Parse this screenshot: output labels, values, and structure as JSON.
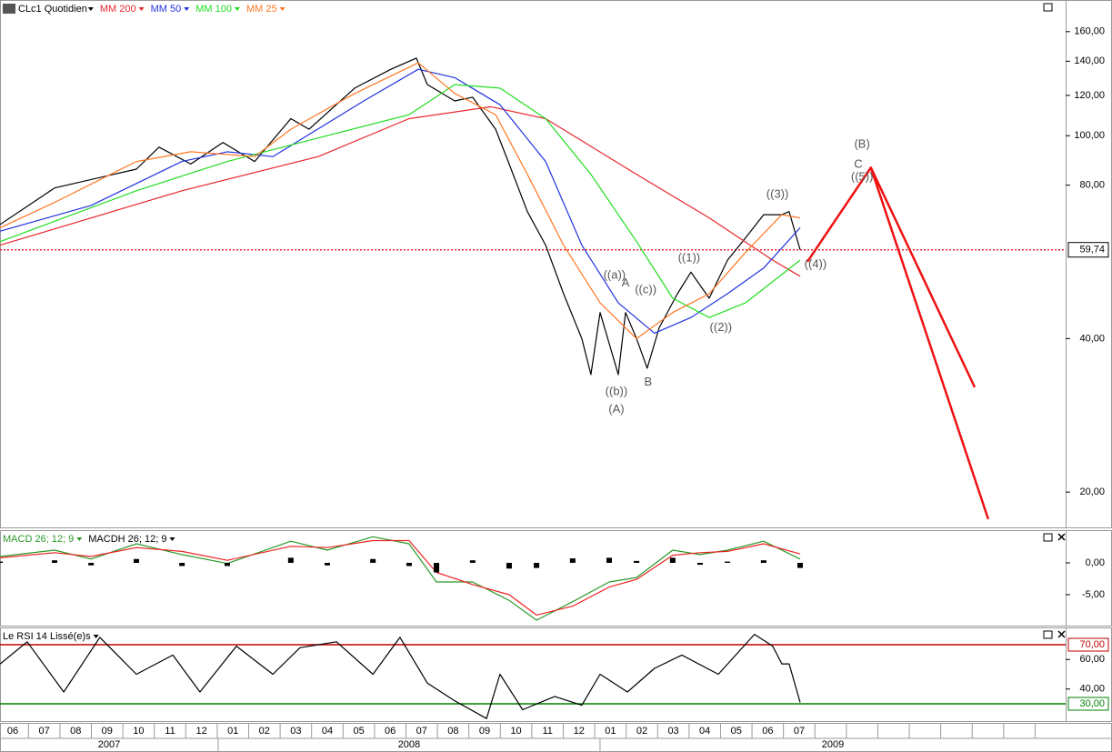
{
  "chart_data": [
    {
      "type": "line",
      "title": "CLc1 Quotidien",
      "log_scale": true,
      "xlim": [
        -0.405,
        33.47
      ],
      "ylim": [
        17.05,
        184.6
      ],
      "yticks": [
        {
          "value": 20,
          "label": "20,00"
        },
        {
          "value": 40,
          "label": "40,00"
        },
        {
          "value": 80,
          "label": "80,00"
        },
        {
          "value": 100,
          "label": "100,00"
        },
        {
          "value": 120,
          "label": "120,00"
        },
        {
          "value": 140,
          "label": "140,00"
        },
        {
          "value": 160,
          "label": "160,00"
        }
      ],
      "xticks": [
        "06",
        "07",
        "08",
        "09",
        "10",
        "11",
        "12",
        "01",
        "02",
        "03",
        "04",
        "05",
        "06",
        "07",
        "08",
        "09",
        "10",
        "11",
        "12",
        "01",
        "02",
        "03",
        "04",
        "05",
        "06",
        "07"
      ],
      "year_ticks": [
        {
          "value": -0.405,
          "label": "2007"
        },
        {
          "value": 6.53,
          "label": "2008"
        },
        {
          "value": 18.67,
          "label": "2009"
        }
      ],
      "last_value": {
        "value": 59.74,
        "label": "59,74",
        "color": "#e8262b"
      },
      "series": [
        {
          "color": "#000000",
          "x": [
            -0.4,
            1.33,
            3.93,
            4.65,
            5.66,
            6.68,
            7.69,
            8.84,
            9.42,
            10.87,
            12.02,
            12.83,
            13.18,
            14.05,
            14.62,
            15.35,
            15.78,
            16.36,
            16.94,
            17.51,
            18.09,
            18.38,
            18.67,
            19.25,
            19.48,
            19.83,
            20.17,
            20.55,
            21.13,
            21.56,
            22.14,
            22.72,
            23.29,
            23.87,
            24.45,
            24.68,
            25.03
          ],
          "values": [
            67,
            79,
            86,
            95,
            88,
            97,
            89,
            108,
            103,
            124,
            135,
            142,
            126,
            117,
            119,
            103,
            88,
            71,
            61,
            49,
            40,
            34,
            45,
            34,
            45,
            40,
            35,
            42,
            49,
            54,
            48,
            57,
            63,
            70,
            70,
            71,
            59.74
          ]
        },
        {
          "name": "MM 200",
          "color": "#e8262b",
          "x": [
            -0.4,
            5.38,
            9.71,
            12.6,
            15.2,
            16.94,
            19.83,
            22.14,
            24.16,
            25.03
          ],
          "values": [
            61,
            78,
            91,
            108,
            114,
            108,
            84,
            69,
            57,
            53
          ]
        },
        {
          "name": "MM 50",
          "color": "#2233dd",
          "x": [
            -0.4,
            2.49,
            5.38,
            6.82,
            8.27,
            11.16,
            12.89,
            14.05,
            15.49,
            16.94,
            18.09,
            19.25,
            20.4,
            21.56,
            22.72,
            23.87,
            25.03
          ],
          "values": [
            65,
            73,
            89,
            93,
            91,
            117,
            135,
            130,
            115,
            89,
            61,
            47,
            41,
            44,
            49,
            55,
            66
          ]
        },
        {
          "name": "MM 100",
          "color": "#22dd22",
          "x": [
            -0.4,
            3.93,
            6.82,
            9.71,
            12.6,
            14.05,
            15.49,
            16.94,
            18.38,
            19.83,
            20.98,
            22.14,
            23.29,
            25.03
          ],
          "values": [
            62,
            78,
            89,
            99,
            110,
            126,
            124,
            108,
            84,
            62,
            48,
            44,
            47,
            57
          ]
        },
        {
          "name": "MM 25",
          "color": "#ff7722",
          "x": [
            -0.4,
            1.33,
            3.93,
            5.66,
            7.69,
            8.84,
            10.87,
            12.89,
            14.05,
            15.35,
            16.36,
            17.51,
            18.67,
            19.83,
            20.98,
            22.14,
            23.29,
            24.45,
            25.03
          ],
          "values": [
            66,
            74,
            89,
            93,
            91,
            103,
            121,
            139,
            121,
            110,
            84,
            61,
            47,
            40,
            45,
            49,
            59,
            70,
            69
          ]
        },
        {
          "color": "#ee1111",
          "width": 2.5,
          "x": [
            25.26,
            27.28,
            30.58
          ],
          "values": [
            56.6,
            86.6,
            32.1
          ]
        },
        {
          "color": "#ee1111",
          "width": 2.5,
          "x": [
            27.28,
            31.01
          ],
          "values": [
            86.6,
            17.7
          ]
        }
      ],
      "annotations": [
        {
          "text": "((a))",
          "x": 19.13,
          "y": 53.2
        },
        {
          "text": "A",
          "x": 19.48,
          "y": 51.3
        },
        {
          "text": "((c))",
          "x": 20.12,
          "y": 49.8
        },
        {
          "text": "((b))",
          "x": 19.19,
          "y": 31.4
        },
        {
          "text": "(A)",
          "x": 19.19,
          "y": 29.0
        },
        {
          "text": "B",
          "x": 20.2,
          "y": 32.8
        },
        {
          "text": "((1))",
          "x": 21.5,
          "y": 57.5
        },
        {
          "text": "((2))",
          "x": 22.51,
          "y": 42.0
        },
        {
          "text": "((3))",
          "x": 24.31,
          "y": 76.6
        },
        {
          "text": "((4))",
          "x": 25.52,
          "y": 55.9
        },
        {
          "text": "(B)",
          "x": 27.0,
          "y": 96.0
        },
        {
          "text": "C",
          "x": 26.88,
          "y": 87.7
        },
        {
          "text": "((5))",
          "x": 27.0,
          "y": 82.8
        }
      ]
    },
    {
      "type": "line",
      "ylim": [
        -9.86,
        5.14
      ],
      "yticks": [
        {
          "value": 0,
          "label": "0,00"
        },
        {
          "value": -5,
          "label": "-5,00"
        }
      ],
      "series": [
        {
          "name": "MACD 26; 12; 9",
          "color": "#2a9a2a",
          "x": [
            -0.4,
            1.33,
            2.49,
            3.93,
            5.38,
            6.82,
            8.84,
            10.0,
            11.45,
            12.6,
            13.47,
            14.62,
            15.78,
            16.65,
            17.8,
            18.96,
            19.83,
            20.98,
            21.85,
            22.72,
            23.87,
            25.03
          ],
          "values": [
            1.0,
            2.0,
            0.6,
            3.0,
            1.3,
            -0.1,
            3.4,
            2.0,
            4.1,
            3.0,
            -3.0,
            -3.0,
            -5.9,
            -9.0,
            -6.1,
            -3.0,
            -2.3,
            2.0,
            1.3,
            2.0,
            3.4,
            0.6
          ]
        },
        {
          "color": "#ee2222",
          "x": [
            -0.4,
            1.33,
            2.49,
            3.93,
            5.38,
            6.82,
            8.84,
            10.0,
            11.45,
            12.6,
            13.47,
            14.62,
            15.78,
            16.65,
            17.8,
            18.96,
            19.83,
            20.98,
            21.85,
            22.72,
            23.87,
            25.03
          ],
          "values": [
            0.8,
            1.6,
            1.0,
            2.4,
            1.8,
            0.4,
            2.6,
            2.4,
            3.5,
            3.5,
            -1.5,
            -3.4,
            -5.0,
            -8.2,
            -6.8,
            -3.8,
            -2.6,
            1.2,
            1.6,
            1.8,
            3.0,
            1.4
          ]
        },
        {
          "name": "MACDH 26; 12; 9",
          "color": "#000000",
          "style": "bar",
          "x": [
            -0.4,
            1.33,
            2.49,
            3.93,
            5.38,
            6.82,
            8.84,
            10.0,
            11.45,
            12.6,
            13.47,
            14.62,
            15.78,
            16.65,
            17.8,
            18.96,
            19.83,
            20.98,
            21.85,
            22.72,
            23.87,
            25.03
          ],
          "values": [
            0.2,
            0.4,
            -0.4,
            0.6,
            -0.5,
            -0.5,
            0.8,
            -0.4,
            0.6,
            -0.5,
            -1.5,
            0.4,
            -0.9,
            -0.8,
            0.7,
            0.8,
            0.3,
            0.8,
            -0.3,
            0.2,
            0.4,
            -0.8
          ]
        }
      ]
    },
    {
      "type": "line",
      "ylim": [
        18.3,
        81.7
      ],
      "yticks": [
        {
          "value": 40,
          "label": "40,00"
        },
        {
          "value": 60,
          "label": "60,00"
        }
      ],
      "hlines": [
        {
          "value": 70,
          "label": "70,00",
          "color": "#c00000"
        },
        {
          "value": 30,
          "label": "30,00",
          "color": "#008000"
        }
      ],
      "series": [
        {
          "name": "Le RSI 14 Lissé(e)s",
          "color": "#000000",
          "x": [
            -0.4,
            0.46,
            1.62,
            2.77,
            3.93,
            5.09,
            5.95,
            7.11,
            8.27,
            9.13,
            10.29,
            11.45,
            12.31,
            13.18,
            14.05,
            15.06,
            15.49,
            16.21,
            17.23,
            18.09,
            18.67,
            19.54,
            20.4,
            21.27,
            22.43,
            23.58,
            24.16,
            24.45,
            24.68,
            25.03
          ],
          "values": [
            57,
            72,
            38,
            75,
            50,
            63,
            38,
            69,
            50,
            68,
            72,
            50,
            75,
            44,
            32,
            20,
            50,
            26,
            35,
            29,
            50,
            38,
            54,
            63,
            50,
            77,
            69,
            57,
            57,
            31
          ]
        }
      ]
    }
  ]
}
